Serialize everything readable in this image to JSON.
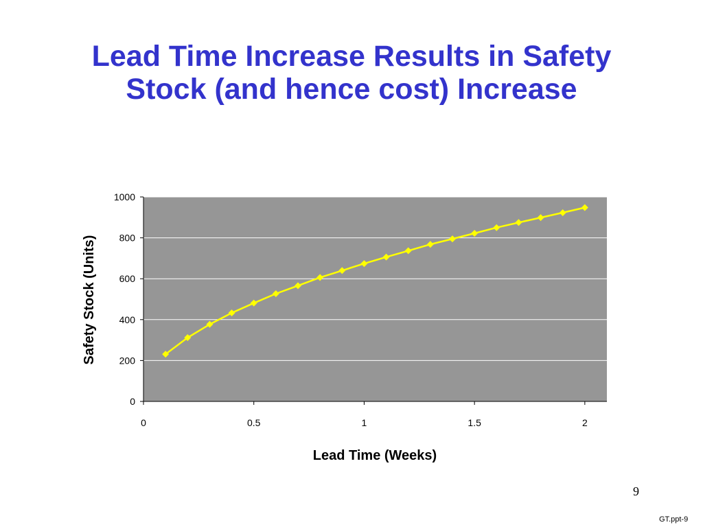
{
  "slide": {
    "title_line1": "Lead Time Increase Results in Safety",
    "title_line2": "Stock (and hence cost) Increase",
    "page_number": "9",
    "footer_ref": "GT.ppt-9"
  },
  "colors": {
    "title": "#3333cc",
    "plot_area": "#969696",
    "series_line": "#ffff00",
    "gridline": "#ffffff"
  },
  "chart_data": {
    "type": "line",
    "xlabel": "Lead Time (Weeks)",
    "ylabel": "Safety Stock (Units)",
    "xlim": [
      0,
      2.1
    ],
    "ylim": [
      0,
      1000
    ],
    "xticks": [
      0,
      0.5,
      1,
      1.5,
      2
    ],
    "yticks": [
      0,
      200,
      400,
      600,
      800,
      1000
    ],
    "xtick_labels": [
      "0",
      "0.5",
      "1",
      "1.5",
      "2"
    ],
    "ytick_labels": [
      "0",
      "200",
      "400",
      "600",
      "800",
      "1000"
    ],
    "grid": "horizontal",
    "legend": "none",
    "marker": "diamond",
    "series": [
      {
        "x": [
          0.1,
          0.2,
          0.3,
          0.4,
          0.5,
          0.6,
          0.7,
          0.8,
          0.9,
          1.0,
          1.1,
          1.2,
          1.3,
          1.4,
          1.5,
          1.6,
          1.7,
          1.8,
          1.9,
          2.0
        ],
        "y": [
          231,
          312,
          377,
          433,
          481,
          527,
          566,
          606,
          640,
          674,
          706,
          737,
          768,
          795,
          822,
          850,
          875,
          899,
          923,
          948
        ]
      }
    ]
  }
}
